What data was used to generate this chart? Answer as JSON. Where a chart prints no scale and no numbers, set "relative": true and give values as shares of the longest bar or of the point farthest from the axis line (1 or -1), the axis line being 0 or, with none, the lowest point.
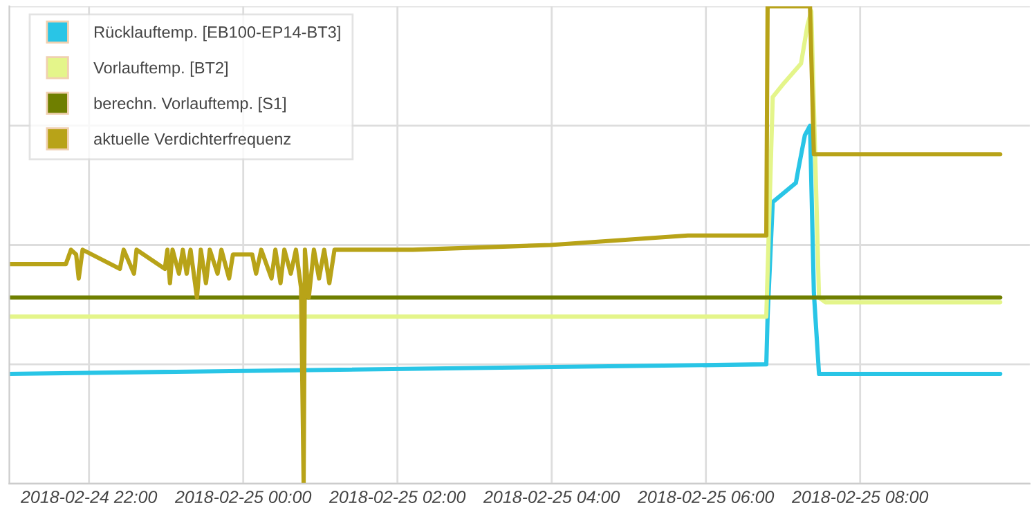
{
  "chart_data": {
    "type": "line",
    "relative": true,
    "grid": true,
    "legend": "top left",
    "marker": "none",
    "line_style": "solid",
    "tick_labels": "x",
    "xlim": [
      "2018-02-24T20:58",
      "2018-02-25T10:12"
    ],
    "xticks": [
      {
        "value": "2018-02-24T22:00",
        "label": "2018-02-24 22:00"
      },
      {
        "value": "2018-02-25T00:00",
        "label": "2018-02-25 00:00"
      },
      {
        "value": "2018-02-25T02:00",
        "label": "2018-02-25 02:00"
      },
      {
        "value": "2018-02-25T04:00",
        "label": "2018-02-25 04:00"
      },
      {
        "value": "2018-02-25T06:00",
        "label": "2018-02-25 06:00"
      },
      {
        "value": "2018-02-25T08:00",
        "label": "2018-02-25 08:00"
      }
    ],
    "series": [
      {
        "name": "Rücklauftemp. [EB100-EP14-BT3]",
        "color": "#29c5e6",
        "x": [
          "2018-02-24T20:58",
          "2018-02-25T06:47",
          "2018-02-25T06:48",
          "2018-02-25T06:52",
          "2018-02-25T07:10",
          "2018-02-25T07:12",
          "2018-02-25T07:17",
          "2018-02-25T07:21",
          "2018-02-25T07:24",
          "2018-02-25T07:28",
          "2018-02-25T09:49"
        ],
        "values": [
          0.23,
          0.25,
          0.35,
          0.59,
          0.63,
          0.66,
          0.73,
          0.75,
          0.4,
          0.23,
          0.23
        ]
      },
      {
        "name": "Vorlauftemp. [BT2]",
        "color": "#e4f58a",
        "x": [
          "2018-02-24T20:58",
          "2018-02-25T06:47",
          "2018-02-25T06:52",
          "2018-02-25T07:01",
          "2018-02-25T07:14",
          "2018-02-25T07:19",
          "2018-02-25T07:22",
          "2018-02-25T07:28",
          "2018-02-25T07:33",
          "2018-02-25T09:49"
        ],
        "values": [
          0.35,
          0.35,
          0.81,
          0.84,
          0.88,
          0.96,
          0.99,
          0.39,
          0.38,
          0.38
        ]
      },
      {
        "name": "berechn. Vorlauftemp. [S1]",
        "color": "#6f7f00",
        "x": [
          "2018-02-24T20:58",
          "2018-02-25T09:49"
        ],
        "values": [
          0.39,
          0.39
        ]
      },
      {
        "name": "aktuelle Verdichterfrequenz",
        "color": "#b8a318",
        "x": [
          "2018-02-24T20:58",
          "2018-02-24T21:42",
          "2018-02-24T21:46",
          "2018-02-24T21:50",
          "2018-02-24T21:52",
          "2018-02-24T21:55",
          "2018-02-24T22:24",
          "2018-02-24T22:27",
          "2018-02-24T22:35",
          "2018-02-24T22:37",
          "2018-02-24T22:59",
          "2018-02-24T23:01",
          "2018-02-24T23:03",
          "2018-02-24T23:05",
          "2018-02-24T23:10",
          "2018-02-24T23:13",
          "2018-02-24T23:16",
          "2018-02-24T23:19",
          "2018-02-24T23:24",
          "2018-02-24T23:27",
          "2018-02-24T23:31",
          "2018-02-24T23:34",
          "2018-02-24T23:40",
          "2018-02-24T23:43",
          "2018-02-24T23:49",
          "2018-02-24T23:52",
          "2018-02-25T00:07",
          "2018-02-25T00:10",
          "2018-02-25T00:14",
          "2018-02-25T00:22",
          "2018-02-25T00:25",
          "2018-02-25T00:29",
          "2018-02-25T00:32",
          "2018-02-25T00:37",
          "2018-02-25T00:41",
          "2018-02-25T00:45",
          "2018-02-25T00:47",
          "2018-02-25T00:48",
          "2018-02-25T00:51",
          "2018-02-25T00:55",
          "2018-02-25T00:59",
          "2018-02-25T01:03",
          "2018-02-25T01:07",
          "2018-02-25T01:11",
          "2018-02-25T02:12",
          "2018-02-25T03:59",
          "2018-02-25T05:46",
          "2018-02-25T06:47",
          "2018-02-25T06:48",
          "2018-02-25T07:21",
          "2018-02-25T07:24",
          "2018-02-25T09:49"
        ],
        "values": [
          0.46,
          0.46,
          0.49,
          0.48,
          0.43,
          0.49,
          0.45,
          0.49,
          0.44,
          0.49,
          0.45,
          0.49,
          0.42,
          0.49,
          0.44,
          0.49,
          0.44,
          0.49,
          0.39,
          0.49,
          0.42,
          0.49,
          0.44,
          0.49,
          0.43,
          0.48,
          0.48,
          0.44,
          0.49,
          0.43,
          0.49,
          0.42,
          0.49,
          0.44,
          0.49,
          0.41,
          0,
          0.49,
          0.39,
          0.49,
          0.43,
          0.49,
          0.42,
          0.49,
          0.49,
          0.5,
          0.52,
          0.52,
          1,
          1,
          0.69,
          0.69
        ]
      }
    ]
  }
}
